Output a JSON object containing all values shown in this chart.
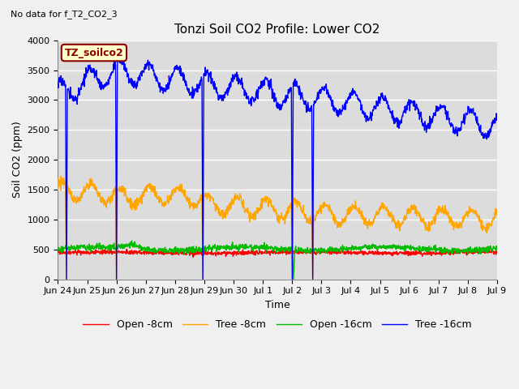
{
  "title": "Tonzi Soil CO2 Profile: Lower CO2",
  "subtitle": "No data for f_T2_CO2_3",
  "xlabel": "Time",
  "ylabel": "Soil CO2 (ppm)",
  "ylim": [
    0,
    4000
  ],
  "legend_label": "TZ_soilco2",
  "series_labels": [
    "Open -8cm",
    "Tree -8cm",
    "Open -16cm",
    "Tree -16cm"
  ],
  "series_colors": [
    "#ff0000",
    "#ffa500",
    "#00bb00",
    "#0000ff"
  ],
  "plot_bg_color": "#dcdcdc",
  "fig_bg_color": "#f0f0f0",
  "grid_color": "#ffffff",
  "tick_labels": [
    "Jun 24",
    "Jun 25",
    "Jun 26",
    "Jun 27",
    "Jun 28",
    "Jun 29",
    "Jun 30",
    "Jul 1",
    "Jul 2",
    "Jul 3",
    "Jul 4",
    "Jul 5",
    "Jul 6",
    "Jul 7",
    "Jul 8",
    "Jul 9"
  ],
  "yticks": [
    0,
    500,
    1000,
    1500,
    2000,
    2500,
    3000,
    3500,
    4000
  ]
}
